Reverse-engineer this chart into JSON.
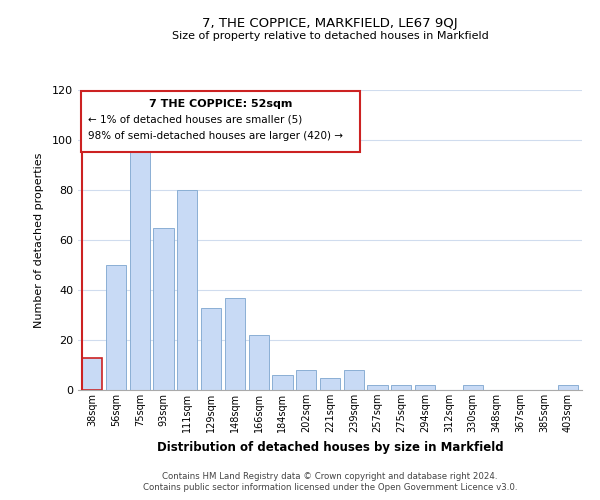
{
  "title": "7, THE COPPICE, MARKFIELD, LE67 9QJ",
  "subtitle": "Size of property relative to detached houses in Markfield",
  "xlabel": "Distribution of detached houses by size in Markfield",
  "ylabel": "Number of detached properties",
  "bar_labels": [
    "38sqm",
    "56sqm",
    "75sqm",
    "93sqm",
    "111sqm",
    "129sqm",
    "148sqm",
    "166sqm",
    "184sqm",
    "202sqm",
    "221sqm",
    "239sqm",
    "257sqm",
    "275sqm",
    "294sqm",
    "312sqm",
    "330sqm",
    "348sqm",
    "367sqm",
    "385sqm",
    "403sqm"
  ],
  "bar_values": [
    13,
    50,
    97,
    65,
    80,
    33,
    37,
    22,
    6,
    8,
    5,
    8,
    2,
    2,
    2,
    0,
    2,
    0,
    0,
    0,
    2
  ],
  "bar_color": "#c8daf5",
  "highlight_bar_index": 0,
  "highlight_edge_color": "#cc2222",
  "normal_edge_color": "#8bafd4",
  "ylim": [
    0,
    120
  ],
  "yticks": [
    0,
    20,
    40,
    60,
    80,
    100,
    120
  ],
  "annotation_title": "7 THE COPPICE: 52sqm",
  "annotation_line1": "← 1% of detached houses are smaller (5)",
  "annotation_line2": "98% of semi-detached houses are larger (420) →",
  "annotation_box_color": "#ffffff",
  "annotation_box_edge": "#cc2222",
  "footer_line1": "Contains HM Land Registry data © Crown copyright and database right 2024.",
  "footer_line2": "Contains public sector information licensed under the Open Government Licence v3.0.",
  "background_color": "#ffffff",
  "grid_color": "#d0dcee"
}
